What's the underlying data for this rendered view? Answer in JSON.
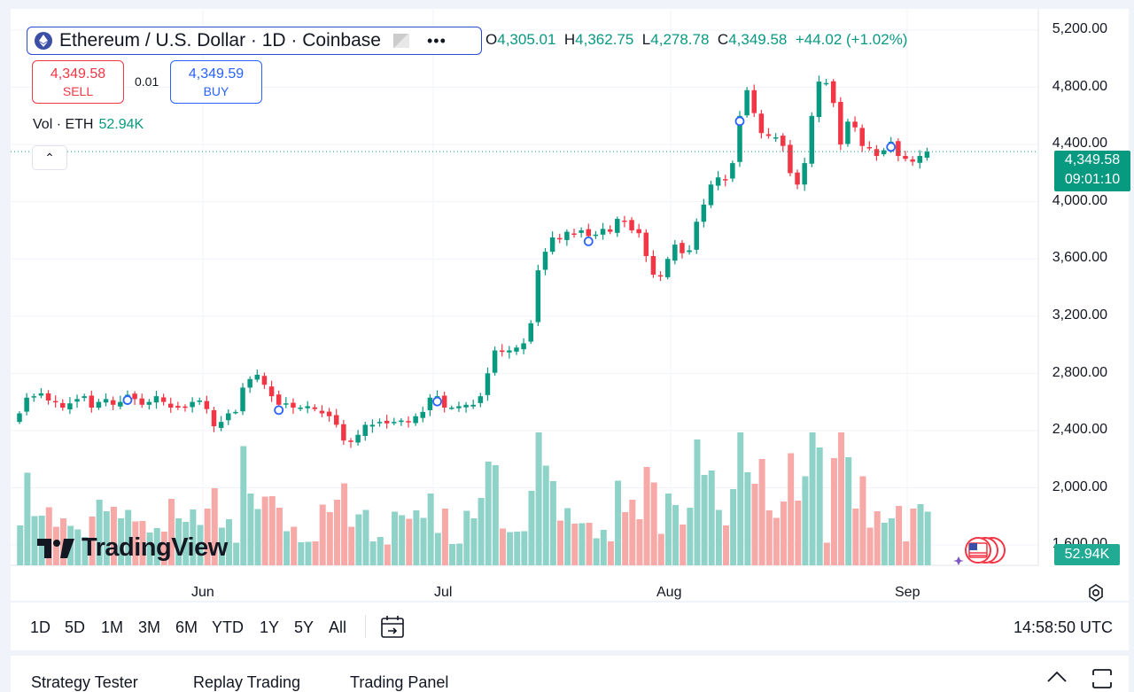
{
  "header": {
    "symbol_title": "Ethereum / U.S. Dollar · 1D · Coinbase",
    "more_label": "•••",
    "ohlc": {
      "open_key": "O",
      "open": "4,305.01",
      "high_key": "H",
      "high": "4,362.75",
      "low_key": "L",
      "low": "4,278.78",
      "close_key": "C",
      "close": "4,349.58",
      "change": "+44.02 (+1.02%)"
    }
  },
  "trade": {
    "sell_price": "4,349.58",
    "sell_label": "SELL",
    "spread": "0.01",
    "buy_price": "4,349.59",
    "buy_label": "BUY"
  },
  "volume": {
    "label": "Vol · ETH",
    "value": "52.94K"
  },
  "collapse_glyph": "⌃",
  "price_axis": [
    "5,200.00",
    "4,800.00",
    "4,400.00",
    "4,000.00",
    "3,600.00",
    "3,200.00",
    "2,800.00",
    "2,400.00",
    "2,000.00",
    "1,600.00"
  ],
  "price_tag": {
    "price": "4,349.58",
    "countdown": "09:01:10"
  },
  "volume_tag": "52.94K",
  "time_axis": [
    "Jun",
    "Jul",
    "Aug",
    "Sep"
  ],
  "watermark": "TradingView",
  "ranges": [
    "1D",
    "5D",
    "1M",
    "3M",
    "6M",
    "YTD",
    "1Y",
    "5Y",
    "All"
  ],
  "clock": "14:58:50 UTC",
  "bottom_tabs": [
    "Strategy Tester",
    "Replay Trading",
    "Trading Panel"
  ],
  "colors": {
    "up": "#089981",
    "down": "#f23645",
    "up_vol": "#8fd3c8",
    "down_vol": "#f7a9a7",
    "accent": "#2962ff"
  },
  "chart_data": {
    "type": "candlestick",
    "symbol": "ETHUSD",
    "interval": "1D",
    "ylim": [
      1600,
      5200
    ],
    "closes": [
      2520,
      2630,
      2640,
      2660,
      2610,
      2600,
      2560,
      2590,
      2620,
      2640,
      2560,
      2600,
      2620,
      2580,
      2600,
      2650,
      2620,
      2580,
      2600,
      2640,
      2600,
      2560,
      2560,
      2560,
      2600,
      2610,
      2550,
      2430,
      2460,
      2520,
      2530,
      2700,
      2760,
      2790,
      2720,
      2640,
      2580,
      2590,
      2560,
      2560,
      2570,
      2550,
      2520,
      2500,
      2440,
      2330,
      2320,
      2370,
      2440,
      2440,
      2460,
      2450,
      2460,
      2470,
      2460,
      2500,
      2530,
      2630,
      2640,
      2560,
      2560,
      2570,
      2580,
      2580,
      2640,
      2800,
      2960,
      2950,
      2960,
      2980,
      3010,
      3150,
      3520,
      3650,
      3750,
      3740,
      3790,
      3770,
      3800,
      3760,
      3770,
      3810,
      3790,
      3880,
      3860,
      3800,
      3780,
      3620,
      3490,
      3480,
      3600,
      3700,
      3640,
      3660,
      3860,
      3980,
      4120,
      4170,
      4150,
      4270,
      4600,
      4780,
      4620,
      4480,
      4460,
      4450,
      4390,
      4200,
      4120,
      4270,
      4600,
      4840,
      4830,
      4690,
      4400,
      4560,
      4520,
      4390,
      4380,
      4320,
      4360,
      4420,
      4320,
      4300,
      4280,
      4320,
      4350
    ]
  }
}
